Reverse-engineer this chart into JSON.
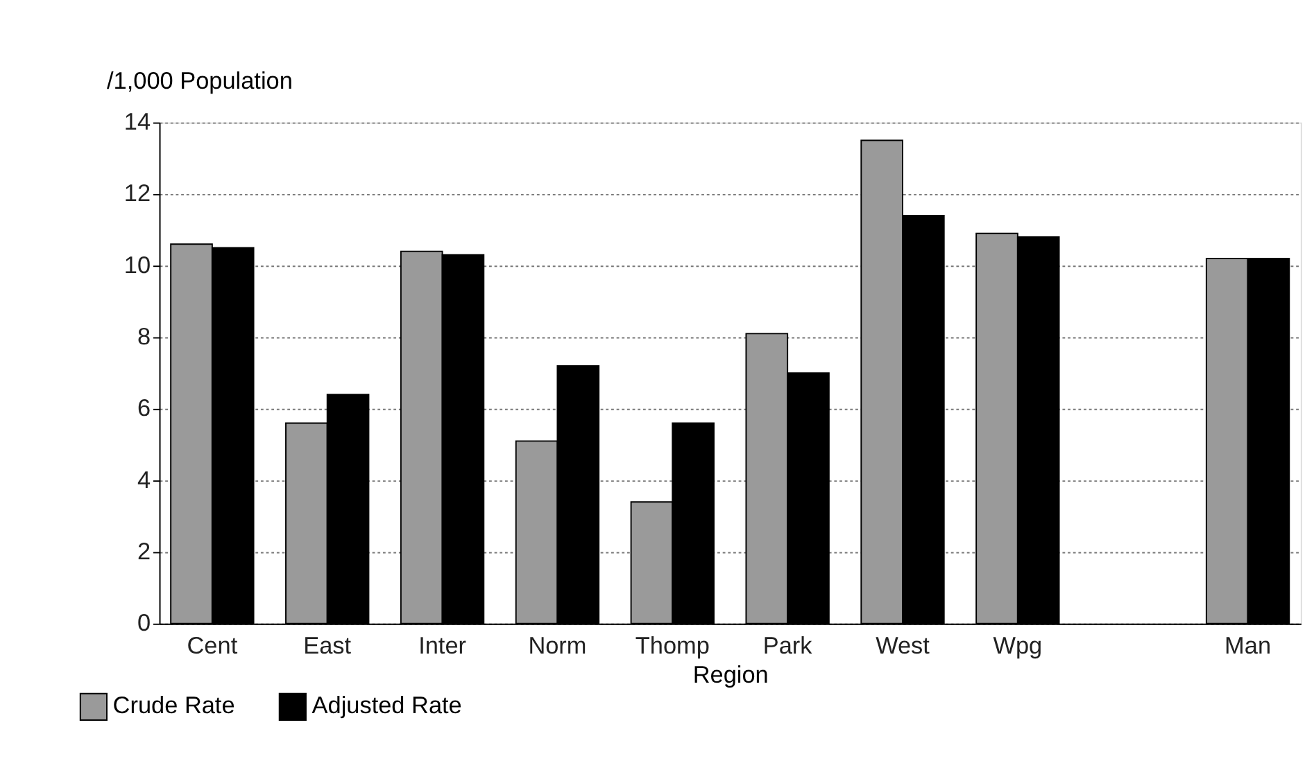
{
  "chart_data": {
    "type": "bar",
    "xlabel": "Region",
    "ylabel": "/1,000 Population",
    "categories": [
      "Cent",
      "East",
      "Inter",
      "Norm",
      "Thomp",
      "Park",
      "West",
      "Wpg",
      null,
      "Man"
    ],
    "series": [
      {
        "name": "Crude Rate",
        "color": "#9a9a9a",
        "values": [
          10.6,
          5.6,
          10.4,
          5.1,
          3.4,
          8.1,
          13.5,
          10.9,
          null,
          10.2
        ]
      },
      {
        "name": "Adjusted Rate",
        "color": "#000000",
        "values": [
          10.5,
          6.4,
          10.3,
          7.2,
          5.6,
          7.0,
          11.4,
          10.8,
          null,
          10.2
        ]
      }
    ],
    "ylim": [
      0,
      14
    ],
    "yticks": [
      0,
      2,
      4,
      6,
      8,
      10,
      12,
      14
    ],
    "grid": "y",
    "legend": "bottom left"
  }
}
